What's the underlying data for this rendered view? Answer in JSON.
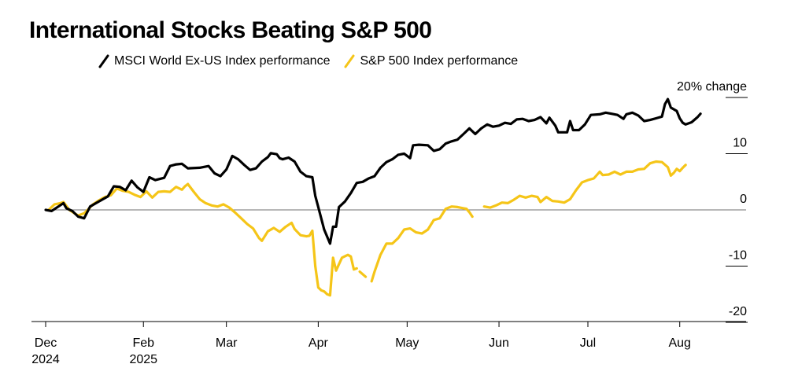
{
  "chart_data": {
    "type": "line",
    "title": "International Stocks Beating S&P 500",
    "xlabel": "",
    "ylabel": "",
    "y_unit_label": "20% change",
    "ylim": [
      -20,
      20
    ],
    "yticks": [
      {
        "value": 20,
        "label": "20% change"
      },
      {
        "value": 10,
        "label": "10"
      },
      {
        "value": 0,
        "label": "0"
      },
      {
        "value": -10,
        "label": "-10"
      },
      {
        "value": -20,
        "label": "-20"
      }
    ],
    "xlim": [
      -2,
      243
    ],
    "xticks": [
      {
        "day": 0,
        "line1": "Dec",
        "line2": "2024"
      },
      {
        "day": 33,
        "line1": "Feb",
        "line2": "2025"
      },
      {
        "day": 61,
        "line1": "Mar",
        "line2": ""
      },
      {
        "day": 92,
        "line1": "Apr",
        "line2": ""
      },
      {
        "day": 122,
        "line1": "May",
        "line2": ""
      },
      {
        "day": 153,
        "line1": "Jun",
        "line2": ""
      },
      {
        "day": 183,
        "line1": "Jul",
        "line2": ""
      },
      {
        "day": 214,
        "line1": "Aug",
        "line2": ""
      }
    ],
    "series": [
      {
        "name": "MSCI World Ex-US Index performance",
        "color": "#000000",
        "points": [
          [
            0,
            0
          ],
          [
            2,
            -0.2
          ],
          [
            4,
            0.5
          ],
          [
            6,
            1.2
          ],
          [
            7,
            0.3
          ],
          [
            9,
            -0.2
          ],
          [
            11,
            -1.2
          ],
          [
            13,
            -1.5
          ],
          [
            15,
            0.6
          ],
          [
            17,
            1.2
          ],
          [
            19,
            1.8
          ],
          [
            21,
            2.4
          ],
          [
            23,
            4.2
          ],
          [
            25,
            4.1
          ],
          [
            27,
            3.5
          ],
          [
            29,
            5.2
          ],
          [
            31,
            4.0
          ],
          [
            33,
            3.2
          ],
          [
            35,
            5.8
          ],
          [
            37,
            5.3
          ],
          [
            40,
            5.7
          ],
          [
            42,
            7.8
          ],
          [
            44,
            8.1
          ],
          [
            46,
            8.2
          ],
          [
            48,
            7.4
          ],
          [
            52,
            7.5
          ],
          [
            55,
            7.8
          ],
          [
            57,
            6.5
          ],
          [
            59,
            6.0
          ],
          [
            61,
            7.2
          ],
          [
            63,
            9.6
          ],
          [
            65,
            9.0
          ],
          [
            67,
            8.0
          ],
          [
            69,
            7.1
          ],
          [
            71,
            7.4
          ],
          [
            73,
            8.6
          ],
          [
            75,
            9.4
          ],
          [
            76,
            10.1
          ],
          [
            78,
            9.9
          ],
          [
            79,
            9.2
          ],
          [
            80,
            9.0
          ],
          [
            82,
            9.3
          ],
          [
            84,
            8.6
          ],
          [
            86,
            6.8
          ],
          [
            88,
            6.0
          ],
          [
            90,
            5.8
          ],
          [
            91,
            2.5
          ],
          [
            92,
            0.5
          ],
          [
            94,
            -3.5
          ],
          [
            96,
            -6.0
          ],
          [
            97,
            -3.0
          ],
          [
            98,
            -3.0
          ],
          [
            99,
            0.5
          ],
          [
            101,
            1.5
          ],
          [
            103,
            3.0
          ],
          [
            105,
            4.8
          ],
          [
            107,
            5.0
          ],
          [
            109,
            5.6
          ],
          [
            111,
            6.0
          ],
          [
            113,
            7.5
          ],
          [
            115,
            8.5
          ],
          [
            117,
            9.0
          ],
          [
            119,
            9.8
          ],
          [
            121,
            10.0
          ],
          [
            123,
            9.2
          ],
          [
            124,
            11.5
          ],
          [
            126,
            11.6
          ],
          [
            129,
            11.5
          ],
          [
            131,
            10.5
          ],
          [
            133,
            10.8
          ],
          [
            135,
            11.8
          ],
          [
            137,
            12.2
          ],
          [
            139,
            12.5
          ],
          [
            141,
            13.5
          ],
          [
            143,
            14.5
          ],
          [
            145,
            13.5
          ],
          [
            147,
            14.5
          ],
          [
            149,
            15.2
          ],
          [
            151,
            14.8
          ],
          [
            153,
            15.0
          ],
          [
            155,
            15.5
          ],
          [
            157,
            15.3
          ],
          [
            159,
            16.1
          ],
          [
            161,
            16.2
          ],
          [
            163,
            15.8
          ],
          [
            165,
            16.0
          ],
          [
            167,
            16.5
          ],
          [
            169,
            15.4
          ],
          [
            170,
            16.4
          ],
          [
            172,
            15.0
          ],
          [
            173,
            13.8
          ],
          [
            176,
            13.8
          ],
          [
            177,
            15.8
          ],
          [
            178,
            14.2
          ],
          [
            180,
            14.2
          ],
          [
            182,
            15.2
          ],
          [
            184,
            16.9
          ],
          [
            187,
            17.0
          ],
          [
            189,
            17.3
          ],
          [
            191,
            17.1
          ],
          [
            193,
            16.9
          ],
          [
            195,
            16.2
          ],
          [
            196,
            17.0
          ],
          [
            198,
            17.3
          ],
          [
            200,
            16.8
          ],
          [
            202,
            15.8
          ],
          [
            204,
            16.0
          ],
          [
            206,
            16.3
          ],
          [
            208,
            16.6
          ],
          [
            209,
            18.8
          ],
          [
            210,
            19.7
          ],
          [
            211,
            18.2
          ],
          [
            213,
            17.6
          ],
          [
            214,
            16.3
          ],
          [
            215,
            15.5
          ],
          [
            216,
            15.2
          ],
          [
            218,
            15.6
          ],
          [
            220,
            16.5
          ],
          [
            221,
            17.1
          ]
        ]
      },
      {
        "name": "S&P 500 Index performance",
        "color": "#F5C518",
        "points": [
          [
            1,
            0
          ],
          [
            3,
            1.0
          ],
          [
            5,
            1.2
          ],
          [
            6,
            1.4
          ],
          [
            7,
            0.7
          ],
          [
            8,
            0.0
          ],
          [
            10,
            -0.7
          ],
          [
            11,
            -1.0
          ],
          [
            13,
            -0.6
          ],
          [
            14,
            -0.1
          ],
          [
            16,
            1.0
          ],
          [
            18,
            1.7
          ],
          [
            20,
            2.3
          ],
          [
            22,
            2.6
          ],
          [
            24,
            3.8
          ],
          [
            26,
            3.4
          ],
          [
            28,
            3.2
          ],
          [
            30,
            2.7
          ],
          [
            32,
            2.3
          ],
          [
            34,
            3.3
          ],
          [
            36,
            2.2
          ],
          [
            38,
            3.2
          ],
          [
            40,
            3.3
          ],
          [
            42,
            3.2
          ],
          [
            44,
            4.1
          ],
          [
            46,
            3.6
          ],
          [
            47,
            4.2
          ],
          [
            48,
            4.6
          ],
          [
            50,
            3.2
          ],
          [
            52,
            1.9
          ],
          [
            54,
            1.2
          ],
          [
            56,
            0.8
          ],
          [
            58,
            0.6
          ],
          [
            60,
            1.0
          ],
          [
            62,
            0.4
          ],
          [
            64,
            -0.5
          ],
          [
            66,
            -1.5
          ],
          [
            68,
            -2.5
          ],
          [
            70,
            -3.3
          ],
          [
            72,
            -5.0
          ],
          [
            73,
            -5.5
          ],
          [
            75,
            -3.8
          ],
          [
            77,
            -3.2
          ],
          [
            79,
            -3.9
          ],
          [
            81,
            -3.0
          ],
          [
            83,
            -2.3
          ],
          [
            84,
            -3.4
          ],
          [
            86,
            -4.5
          ],
          [
            88,
            -4.7
          ],
          [
            89,
            -4.6
          ],
          [
            90,
            -3.7
          ],
          [
            91,
            -10.0
          ],
          [
            92,
            -13.8
          ],
          [
            93,
            -14.3
          ],
          [
            94,
            -14.5
          ],
          [
            95,
            -15.0
          ],
          [
            96,
            -15.2
          ],
          [
            97,
            -8.5
          ],
          [
            98,
            -10.8
          ],
          [
            100,
            -8.5
          ],
          [
            102,
            -8.0
          ],
          [
            103,
            -8.3
          ],
          [
            104,
            -10.6
          ],
          [
            105,
            -10.4
          ],
          [
            null,
            null
          ],
          [
            106,
            -11.0
          ],
          [
            108,
            -11.9
          ],
          [
            null,
            null
          ],
          [
            110,
            -12.7
          ],
          [
            111,
            -11.0
          ],
          [
            113,
            -8.0
          ],
          [
            115,
            -6.0
          ],
          [
            117,
            -6.0
          ],
          [
            119,
            -5.0
          ],
          [
            121,
            -3.5
          ],
          [
            123,
            -3.3
          ],
          [
            125,
            -4.0
          ],
          [
            127,
            -4.2
          ],
          [
            129,
            -3.5
          ],
          [
            131,
            -1.8
          ],
          [
            133,
            -1.5
          ],
          [
            135,
            0.2
          ],
          [
            137,
            0.6
          ],
          [
            139,
            0.5
          ],
          [
            141,
            0.3
          ],
          [
            142,
            0.2
          ],
          [
            143,
            -0.4
          ],
          [
            144,
            -1.2
          ],
          [
            null,
            null
          ],
          [
            146,
            -0.2
          ],
          [
            null,
            null
          ],
          [
            148,
            0.6
          ],
          [
            150,
            0.4
          ],
          [
            152,
            0.8
          ],
          [
            154,
            1.3
          ],
          [
            156,
            1.2
          ],
          [
            158,
            1.8
          ],
          [
            160,
            2.5
          ],
          [
            162,
            2.2
          ],
          [
            164,
            2.5
          ],
          [
            166,
            2.3
          ],
          [
            167,
            1.4
          ],
          [
            169,
            2.3
          ],
          [
            171,
            1.6
          ],
          [
            173,
            1.5
          ],
          [
            175,
            1.3
          ],
          [
            177,
            1.9
          ],
          [
            179,
            3.5
          ],
          [
            181,
            4.9
          ],
          [
            183,
            5.3
          ],
          [
            185,
            5.6
          ],
          [
            187,
            6.8
          ],
          [
            188,
            6.2
          ],
          [
            190,
            6.3
          ],
          [
            192,
            6.8
          ],
          [
            194,
            6.3
          ],
          [
            196,
            6.8
          ],
          [
            198,
            6.8
          ],
          [
            200,
            7.2
          ],
          [
            202,
            7.3
          ],
          [
            204,
            8.3
          ],
          [
            206,
            8.6
          ],
          [
            208,
            8.5
          ],
          [
            210,
            7.6
          ],
          [
            211,
            6.1
          ],
          [
            212,
            6.6
          ],
          [
            213,
            7.3
          ],
          [
            214,
            6.9
          ],
          [
            215,
            7.5
          ],
          [
            216,
            8.0
          ]
        ]
      }
    ],
    "legend": [
      {
        "label": "MSCI World Ex-US Index performance",
        "color": "#000000"
      },
      {
        "label": "S&P 500 Index performance",
        "color": "#F5C518"
      }
    ]
  }
}
